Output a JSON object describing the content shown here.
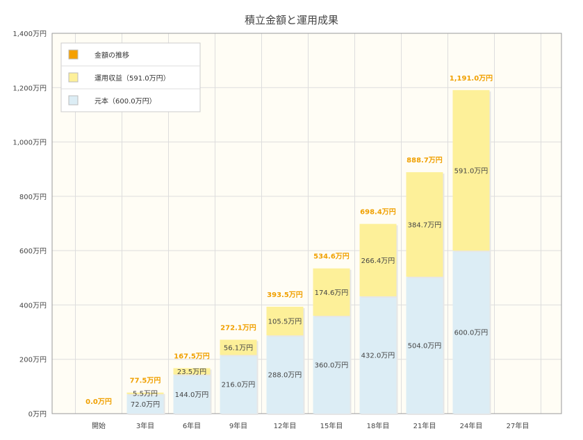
{
  "chart_data": {
    "type": "bar",
    "stacked": true,
    "title": "積立金額と運用成果",
    "categories": [
      "開始",
      "3年目",
      "6年目",
      "9年目",
      "12年目",
      "15年目",
      "18年目",
      "21年目",
      "24年目",
      "27年目"
    ],
    "series": [
      {
        "name": "元本（600.0万円）",
        "color": "#dcedf5",
        "values": [
          0,
          72,
          144,
          216,
          288,
          360,
          432,
          504,
          600,
          null
        ],
        "labels": [
          "",
          "72.0万円",
          "144.0万円",
          "216.0万円",
          "288.0万円",
          "360.0万円",
          "432.0万円",
          "504.0万円",
          "600.0万円",
          ""
        ]
      },
      {
        "name": "運用収益（591.0万円）",
        "color": "#fdf099",
        "values": [
          0,
          5.5,
          23.5,
          56.1,
          105.5,
          174.6,
          266.4,
          384.7,
          591.0,
          null
        ],
        "labels": [
          "",
          "5.5万円",
          "23.5万円",
          "56.1万円",
          "105.5万円",
          "174.6万円",
          "266.4万円",
          "384.7万円",
          "591.0万円",
          ""
        ]
      }
    ],
    "totals": {
      "name": "金額の推移",
      "color": "#f5a000",
      "values": [
        0,
        77.5,
        167.5,
        272.1,
        393.5,
        534.6,
        698.4,
        888.7,
        1191.0,
        null
      ],
      "labels": [
        "0.0万円",
        "77.5万円",
        "167.5万円",
        "272.1万円",
        "393.5万円",
        "534.6万円",
        "698.4万円",
        "888.7万円",
        "1,191.0万円",
        ""
      ]
    },
    "y_ticks": [
      0,
      200,
      400,
      600,
      800,
      1000,
      1200,
      1400
    ],
    "y_tick_labels": [
      "0万円",
      "200万円",
      "400万円",
      "600万円",
      "800万円",
      "1,000万円",
      "1,200万円",
      "1,400万円"
    ],
    "ylim": [
      0,
      1400
    ],
    "grid": true,
    "legend_position": "top-left"
  }
}
